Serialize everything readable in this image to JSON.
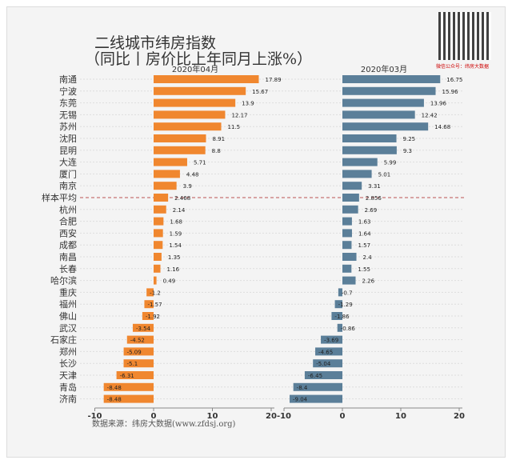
{
  "title": "二线城市纬房指数",
  "subtitle": "（同比丨房价比上年同月上涨%）",
  "source": "数据来源：纬房大数据(www.zfdsj.org)",
  "qr_caption": "微信公众号：纬房大数据",
  "colors": {
    "left": "#f0872f",
    "right": "#5b7f99"
  },
  "chart_data": [
    {
      "type": "bar",
      "orientation": "horizontal",
      "title": "2020年04月",
      "xlim": [
        -10,
        20
      ],
      "xticks": [
        "-10",
        "0",
        "10",
        "20"
      ],
      "categories": [
        "南通",
        "宁波",
        "东莞",
        "无锡",
        "苏州",
        "沈阳",
        "昆明",
        "大连",
        "厦门",
        "南京",
        "样本平均",
        "杭州",
        "合肥",
        "西安",
        "成都",
        "南昌",
        "长春",
        "哈尔滨",
        "重庆",
        "福州",
        "佛山",
        "武汉",
        "石家庄",
        "郑州",
        "长沙",
        "天津",
        "青岛",
        "济南"
      ],
      "values": [
        17.89,
        15.67,
        13.9,
        12.17,
        11.5,
        8.91,
        8.8,
        5.71,
        4.48,
        3.9,
        2.468,
        2.14,
        1.68,
        1.59,
        1.54,
        1.35,
        1.16,
        0.49,
        -1.2,
        -1.57,
        -1.92,
        -3.54,
        -4.52,
        -5.09,
        -5.1,
        -6.31,
        -8.48,
        -8.48
      ]
    },
    {
      "type": "bar",
      "orientation": "horizontal",
      "title": "2020年03月",
      "xlim": [
        -10,
        20
      ],
      "xticks": [
        "-10",
        "0",
        "10",
        "20"
      ],
      "values": [
        16.75,
        15.96,
        13.96,
        12.42,
        14.68,
        9.25,
        9.3,
        5.99,
        5.01,
        3.31,
        2.856,
        2.69,
        1.63,
        1.64,
        1.57,
        2.4,
        1.55,
        2.26,
        -0.7,
        -1.29,
        -1.86,
        -0.86,
        -3.69,
        -4.65,
        -5.04,
        -6.45,
        -8.4,
        -9.04
      ]
    }
  ]
}
